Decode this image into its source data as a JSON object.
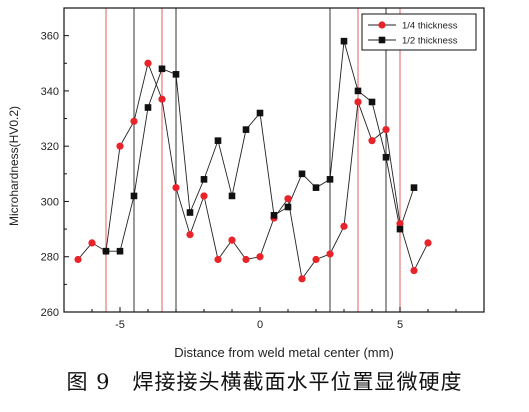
{
  "chart_data": {
    "type": "line",
    "xlabel": "Distance from weld metal center (mm)",
    "ylabel": "Microhardness(HV0.2)",
    "xlim": [
      -7,
      8
    ],
    "ylim": [
      260,
      370
    ],
    "x_ticks": [
      -5,
      0,
      5
    ],
    "y_ticks": [
      260,
      280,
      300,
      320,
      340,
      360
    ],
    "legend_position": "top-right",
    "grid": false,
    "series": [
      {
        "name": "1/4 thickness",
        "color": "#e8232a",
        "marker": "circle",
        "x": [
          -6.5,
          -6.0,
          -5.5,
          -5.0,
          -4.5,
          -4.0,
          -3.5,
          -3.0,
          -2.5,
          -2.0,
          -1.5,
          -1.0,
          -0.5,
          0.0,
          0.5,
          1.0,
          1.5,
          2.0,
          2.5,
          3.0,
          3.5,
          4.0,
          4.5,
          5.0,
          5.5,
          6.0
        ],
        "values": [
          279,
          285,
          282,
          320,
          329,
          350,
          337,
          305,
          288,
          302,
          279,
          286,
          279,
          280,
          294,
          301,
          272,
          279,
          281,
          291,
          336,
          322,
          326,
          292,
          275,
          285
        ]
      },
      {
        "name": "1/2 thickness",
        "color": "#111111",
        "marker": "square",
        "x": [
          -5.5,
          -5.0,
          -4.5,
          -4.0,
          -3.5,
          -3.0,
          -2.5,
          -2.0,
          -1.5,
          -1.0,
          -0.5,
          0.0,
          0.5,
          1.0,
          1.5,
          2.0,
          2.5,
          3.0,
          3.5,
          4.0,
          4.5,
          5.0,
          5.5
        ],
        "values": [
          282,
          282,
          302,
          334,
          348,
          346,
          296,
          308,
          322,
          302,
          326,
          332,
          295,
          298,
          310,
          305,
          308,
          358,
          340,
          336,
          316,
          290,
          305
        ]
      }
    ],
    "reference_lines": {
      "red_x": [
        -5.5,
        -3.5,
        3.5,
        5.0
      ],
      "black_x": [
        -4.5,
        -3.0,
        2.5,
        4.5
      ],
      "red_color": "#e97a7a",
      "black_color": "#333333"
    }
  },
  "caption": "图 9　焊接接头横截面水平位置显微硬度"
}
